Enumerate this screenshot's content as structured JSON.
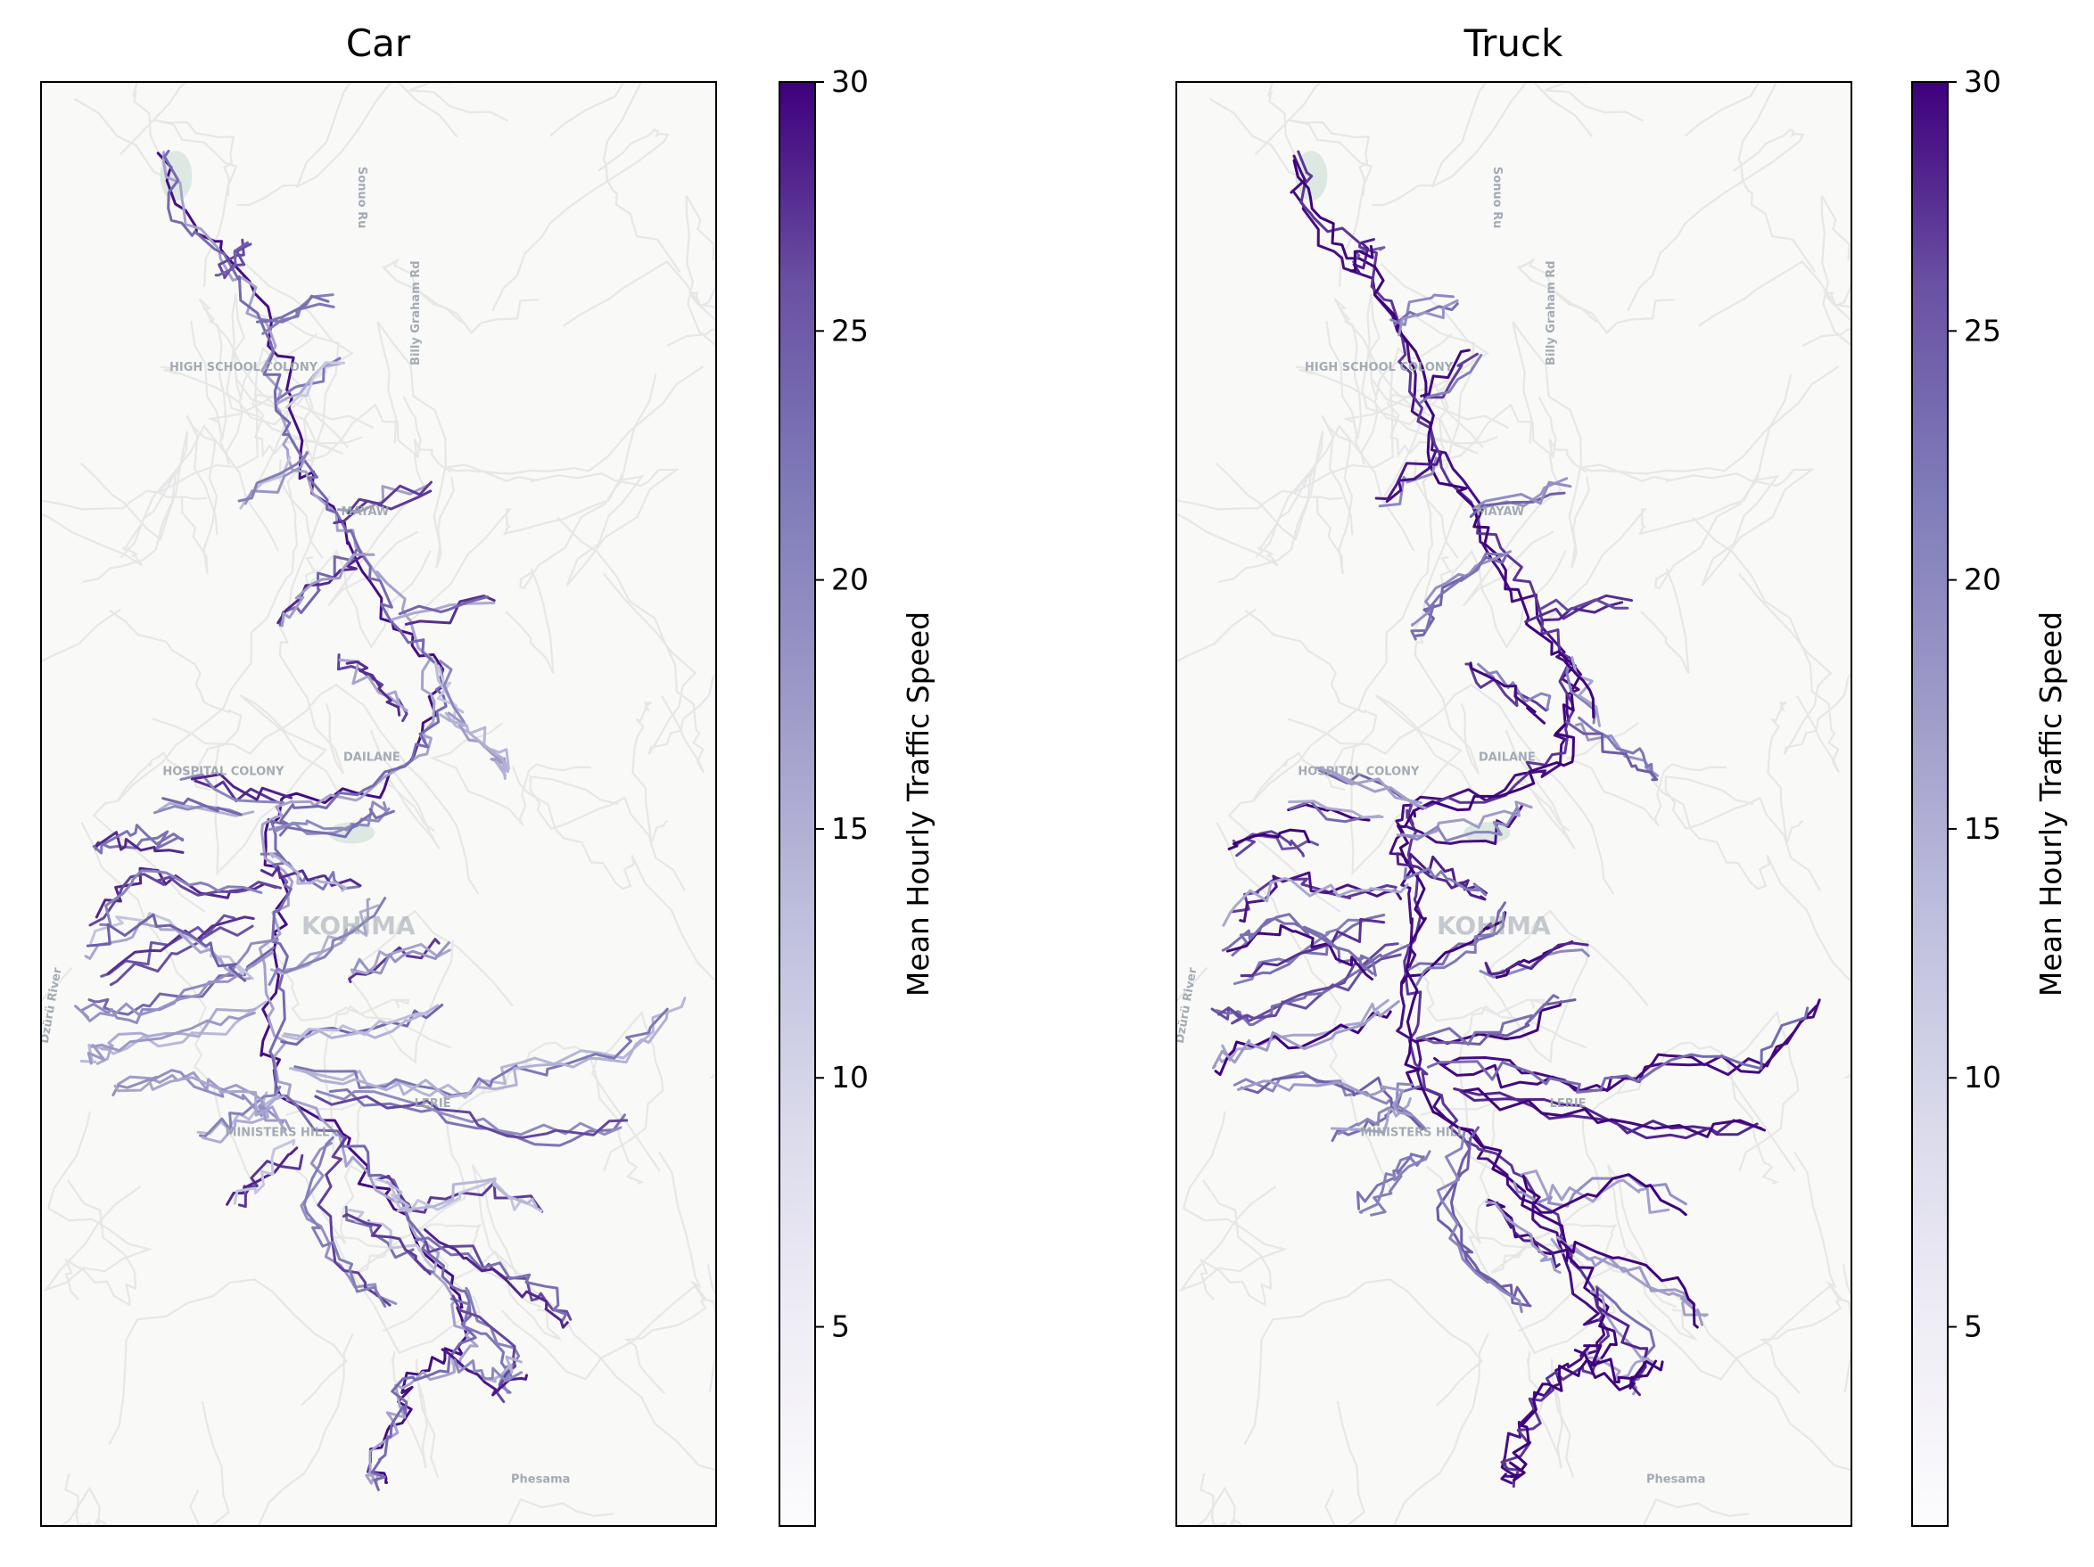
{
  "figure": {
    "colormap": [
      "#fcfbfd",
      "#dadaeb",
      "#bcbddc",
      "#9e9ac8",
      "#807dba",
      "#6a51a3",
      "#54278f",
      "#3f007d"
    ],
    "basemap_colors": {
      "land": "#f9f9f7",
      "roads": "#e6e7e6",
      "park": "#dde8e2",
      "label": "#9aa3ad"
    },
    "panels": [
      {
        "id": "car",
        "title": "Car",
        "colorbar": {
          "label": "Mean Hourly Traffic Speed",
          "ticks": [
            5,
            10,
            15,
            20,
            25,
            30
          ],
          "min": 1,
          "max": 30
        },
        "map_labels": [
          "Sonuo Ru",
          "Billy Graham Rd",
          "HIGH SCHOOL COLONY",
          "MAYAW",
          "HOSPITAL COLONY",
          "DAILANE",
          "KOHIMA",
          "Dzürü River",
          "LERIE",
          "MINISTERS HILL",
          "Phesama"
        ]
      },
      {
        "id": "truck",
        "title": "Truck",
        "colorbar": {
          "label": "Mean Hourly Traffic Speed",
          "ticks": [
            5,
            10,
            15,
            20,
            25,
            30
          ],
          "min": 1,
          "max": 30
        },
        "map_labels": [
          "Sonuo Ru",
          "Billy Graham Rd",
          "HIGH SCHOOL COLONY",
          "MAYAW",
          "HOSPITAL COLONY",
          "DAILANE",
          "KOHIMA",
          "Dzürü River",
          "LERIE",
          "MINISTERS HILL",
          "Phesama"
        ]
      }
    ]
  }
}
